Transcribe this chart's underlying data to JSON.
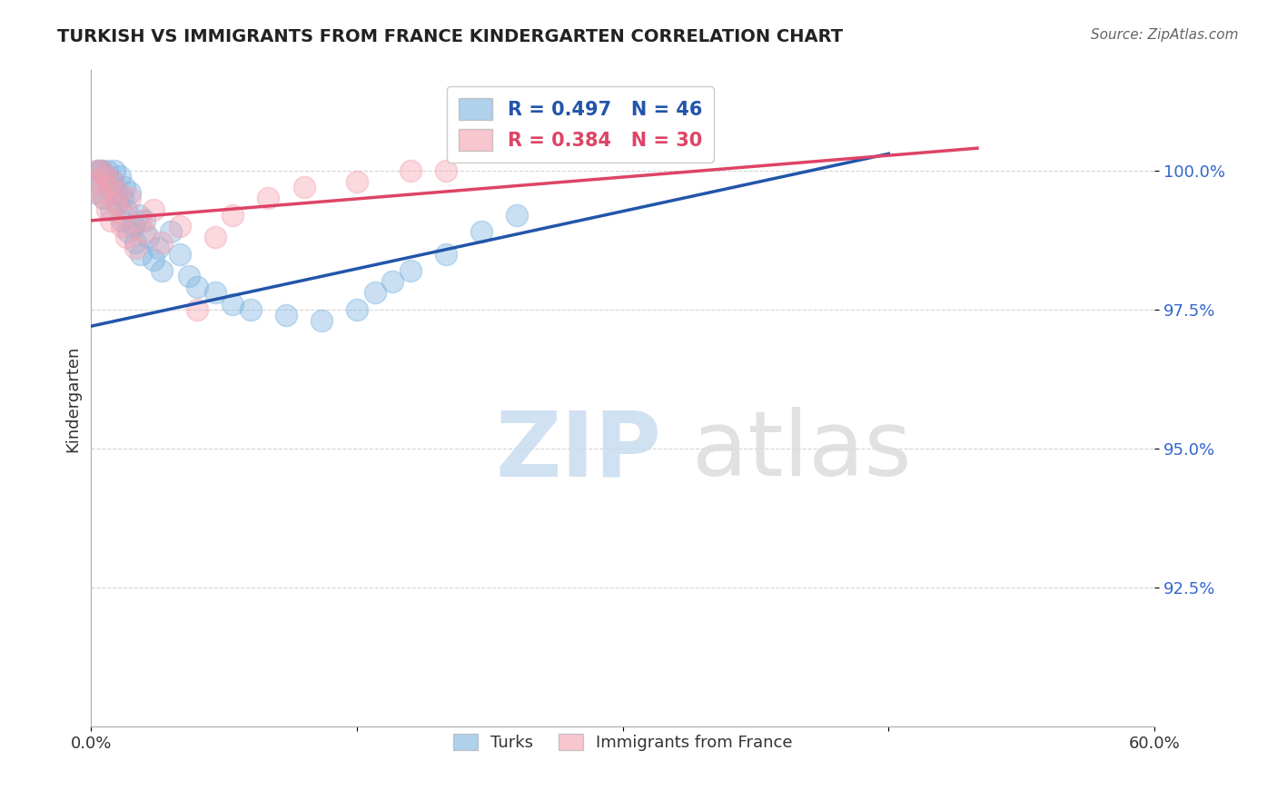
{
  "title": "TURKISH VS IMMIGRANTS FROM FRANCE KINDERGARTEN CORRELATION CHART",
  "source": "Source: ZipAtlas.com",
  "ylabel": "Kindergarten",
  "xlim": [
    0.0,
    60.0
  ],
  "ylim": [
    90.0,
    101.8
  ],
  "yticks": [
    92.5,
    95.0,
    97.5,
    100.0
  ],
  "ytick_labels": [
    "92.5%",
    "95.0%",
    "97.5%",
    "100.0%"
  ],
  "blue_R": 0.497,
  "blue_N": 46,
  "pink_R": 0.384,
  "pink_N": 30,
  "blue_color": "#7BB3E0",
  "pink_color": "#F4A0B0",
  "blue_line_color": "#2255AA",
  "pink_line_color": "#DD4466",
  "legend_label_blue": "Turks",
  "legend_label_pink": "Immigrants from France",
  "blue_scatter_x": [
    0.2,
    0.3,
    0.4,
    0.5,
    0.6,
    0.7,
    0.8,
    0.9,
    1.0,
    1.1,
    1.2,
    1.3,
    1.4,
    1.5,
    1.6,
    1.7,
    1.8,
    1.9,
    2.0,
    2.1,
    2.2,
    2.4,
    2.5,
    2.7,
    2.8,
    3.0,
    3.2,
    3.5,
    3.8,
    4.0,
    4.5,
    5.0,
    5.5,
    6.0,
    7.0,
    8.0,
    9.0,
    11.0,
    13.0,
    15.0,
    16.0,
    17.0,
    18.0,
    20.0,
    22.0,
    24.0
  ],
  "blue_scatter_y": [
    99.6,
    99.8,
    100.0,
    100.0,
    100.0,
    99.5,
    99.9,
    100.0,
    99.7,
    99.3,
    99.8,
    100.0,
    99.6,
    99.4,
    99.9,
    99.1,
    99.5,
    99.7,
    99.3,
    98.9,
    99.6,
    99.0,
    98.7,
    99.2,
    98.5,
    99.1,
    98.8,
    98.4,
    98.6,
    98.2,
    98.9,
    98.5,
    98.1,
    97.9,
    97.8,
    97.6,
    97.5,
    97.4,
    97.3,
    97.5,
    97.8,
    98.0,
    98.2,
    98.5,
    98.9,
    99.2
  ],
  "pink_scatter_x": [
    0.2,
    0.3,
    0.5,
    0.6,
    0.7,
    0.8,
    0.9,
    1.0,
    1.1,
    1.2,
    1.4,
    1.5,
    1.7,
    1.9,
    2.0,
    2.2,
    2.5,
    2.8,
    3.0,
    3.5,
    4.0,
    5.0,
    6.0,
    7.0,
    8.0,
    10.0,
    12.0,
    15.0,
    18.0,
    20.0
  ],
  "pink_scatter_y": [
    99.8,
    100.0,
    99.6,
    100.0,
    99.5,
    99.9,
    99.3,
    99.7,
    99.1,
    99.8,
    99.4,
    99.6,
    99.0,
    99.2,
    98.8,
    99.5,
    98.6,
    99.1,
    98.9,
    99.3,
    98.7,
    99.0,
    97.5,
    98.8,
    99.2,
    99.5,
    99.7,
    99.8,
    100.0,
    100.0
  ],
  "blue_trend_x": [
    0.0,
    45.0
  ],
  "blue_trend_y": [
    97.2,
    100.3
  ],
  "pink_trend_x": [
    0.0,
    50.0
  ],
  "pink_trend_y": [
    99.1,
    100.4
  ]
}
